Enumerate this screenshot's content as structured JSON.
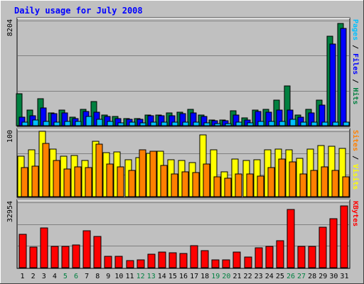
{
  "chart_data": {
    "type": "bar",
    "title": "Daily usage for July 2008",
    "categories": [
      "1",
      "2",
      "3",
      "4",
      "5",
      "6",
      "7",
      "8",
      "9",
      "10",
      "11",
      "12",
      "13",
      "14",
      "15",
      "16",
      "17",
      "18",
      "19",
      "20",
      "21",
      "22",
      "23",
      "24",
      "25",
      "26",
      "27",
      "28",
      "29",
      "30",
      "31"
    ],
    "weekend_days": [
      "5",
      "6",
      "12",
      "13",
      "19",
      "20",
      "26",
      "27"
    ],
    "colors": {
      "hits": "#008040",
      "files": "#0000ff",
      "pages": "#00c0ff",
      "visits": "#ffff00",
      "sites": "#ff8000",
      "kbytes": "#ff0000",
      "weekend_label": "#008040",
      "weekday_label": "#000000",
      "panel_bg": "#c0c0c0",
      "grid": "#808080"
    },
    "panels": [
      {
        "name": "hits-files-pages",
        "ymax_label": "8204",
        "label_parts": [
          {
            "text": "Pages",
            "color": "#00c0ff"
          },
          {
            "text": " / ",
            "color": "#000000"
          },
          {
            "text": "Files",
            "color": "#0000ff"
          },
          {
            "text": " / ",
            "color": "#000000"
          },
          {
            "text": "Hits",
            "color": "#008040"
          }
        ],
        "ylim": [
          0,
          8204
        ],
        "series": [
          {
            "name": "Hits",
            "key": "hits",
            "values": [
              2500,
              1200,
              2100,
              1000,
              1200,
              650,
              1250,
              1900,
              850,
              700,
              550,
              550,
              850,
              850,
              1000,
              1050,
              1300,
              850,
              450,
              450,
              1150,
              600,
              1200,
              1250,
              2000,
              3100,
              850,
              1300,
              2000,
              7000,
              8000
            ]
          },
          {
            "name": "Files",
            "key": "files",
            "values": [
              650,
              800,
              1400,
              950,
              1000,
              550,
              1100,
              1050,
              700,
              550,
              500,
              500,
              750,
              750,
              750,
              950,
              1000,
              700,
              400,
              400,
              850,
              450,
              1100,
              1050,
              1200,
              1200,
              650,
              1000,
              1600,
              6400,
              7600
            ]
          },
          {
            "name": "Pages",
            "key": "pages",
            "values": [
              280,
              420,
              350,
              300,
              320,
              360,
              720,
              520,
              330,
              240,
              250,
              230,
              260,
              260,
              260,
              270,
              260,
              230,
              170,
              180,
              300,
              230,
              330,
              330,
              350,
              480,
              300,
              260,
              260,
              300,
              270
            ]
          }
        ]
      },
      {
        "name": "visits-sites",
        "ymax_label": "100",
        "label_parts": [
          {
            "text": "Sites",
            "color": "#ff8000"
          },
          {
            "text": " / ",
            "color": "#000000"
          },
          {
            "text": "Visits",
            "color": "#ffff00"
          }
        ],
        "ylim": [
          0,
          100
        ],
        "series": [
          {
            "name": "Visits",
            "key": "visits",
            "values": [
              62,
              72,
              100,
              73,
              62,
              63,
              55,
              85,
              67,
              68,
              56,
              60,
              66,
              70,
              56,
              55,
              52,
              95,
              72,
              38,
              58,
              55,
              57,
              72,
              73,
              72,
              59,
              73,
              78,
              77,
              74
            ]
          },
          {
            "name": "Sites",
            "key": "sites",
            "values": [
              45,
              47,
              82,
              55,
              42,
              46,
              45,
              80,
              50,
              46,
              40,
              72,
              70,
              48,
              35,
              38,
              37,
              50,
              30,
              28,
              35,
              35,
              32,
              45,
              58,
              53,
              35,
              40,
              46,
              40,
              30
            ]
          }
        ]
      },
      {
        "name": "kbytes",
        "ymax_label": "32954",
        "label_parts": [
          {
            "text": "KBytes",
            "color": "#ff0000"
          }
        ],
        "ylim": [
          0,
          32954
        ],
        "series": [
          {
            "name": "KBytes",
            "key": "kbytes",
            "values": [
              17000,
              10500,
              20000,
              10800,
              10600,
              11500,
              18500,
              15600,
              5800,
              5800,
              3600,
              3900,
              6800,
              8000,
              7400,
              7200,
              11100,
              8500,
              3800,
              4000,
              8000,
              5200,
              10200,
              10900,
              13700,
              29400,
              10800,
              10600,
              20300,
              24700,
              31200
            ]
          }
        ]
      }
    ]
  }
}
